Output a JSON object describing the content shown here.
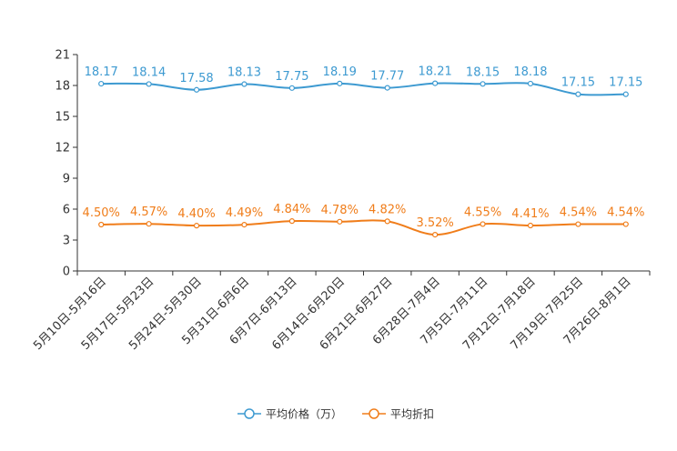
{
  "chart_data": {
    "type": "line",
    "categories": [
      "5月10日-5月16日",
      "5月17日-5月23日",
      "5月24日-5月30日",
      "5月31日-6月6日",
      "6月7日-6月13日",
      "6月14日-6月20日",
      "6月21日-6月27日",
      "6月28日-7月4日",
      "7月5日-7月11日",
      "7月12日-7月18日",
      "7月19日-7月25日",
      "7月26日-8月1日"
    ],
    "y_ticks": [
      "0",
      "3",
      "6",
      "9",
      "12",
      "15",
      "18",
      "21"
    ],
    "ylim": [
      0,
      21
    ],
    "series": [
      {
        "name": "平均价格（万）",
        "color": "#3d9ad1",
        "values": [
          18.17,
          18.14,
          17.58,
          18.13,
          17.75,
          18.19,
          17.77,
          18.21,
          18.15,
          18.18,
          17.15,
          17.15
        ],
        "labels": [
          "18.17",
          "18.14",
          "17.58",
          "18.13",
          "17.75",
          "18.19",
          "17.77",
          "18.21",
          "18.15",
          "18.18",
          "17.15",
          "17.15"
        ]
      },
      {
        "name": "平均折扣",
        "color": "#f07d1a",
        "values": [
          4.5,
          4.57,
          4.4,
          4.49,
          4.84,
          4.78,
          4.82,
          3.52,
          4.55,
          4.41,
          4.54,
          4.54
        ],
        "labels": [
          "4.50%",
          "4.57%",
          "4.40%",
          "4.49%",
          "4.84%",
          "4.78%",
          "4.82%",
          "3.52%",
          "4.55%",
          "4.41%",
          "4.54%",
          "4.54%"
        ]
      }
    ],
    "legend_position": "bottom-center",
    "title": "",
    "xlabel": "",
    "ylabel": ""
  }
}
